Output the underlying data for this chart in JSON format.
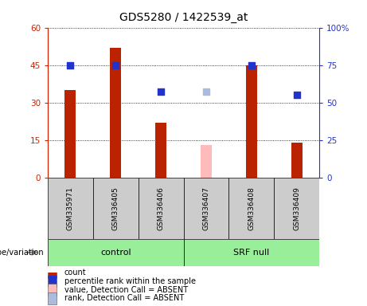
{
  "title": "GDS5280 / 1422539_at",
  "samples": [
    "GSM335971",
    "GSM336405",
    "GSM336406",
    "GSM336407",
    "GSM336408",
    "GSM336409"
  ],
  "count_values": [
    35,
    52,
    22,
    null,
    45,
    14
  ],
  "count_absent": [
    null,
    null,
    null,
    13,
    null,
    null
  ],
  "percentile_present": [
    75,
    75,
    57,
    null,
    75,
    55
  ],
  "percentile_absent": [
    null,
    null,
    null,
    57,
    null,
    null
  ],
  "left_ylim": [
    0,
    60
  ],
  "right_ylim": [
    0,
    100
  ],
  "left_yticks": [
    0,
    15,
    30,
    45,
    60
  ],
  "right_yticks": [
    0,
    25,
    50,
    75,
    100
  ],
  "right_yticklabels": [
    "0",
    "25",
    "50",
    "75",
    "100%"
  ],
  "bar_color": "#bb2200",
  "bar_absent_color": "#ffbbbb",
  "dot_color": "#2233cc",
  "dot_absent_color": "#aabbdd",
  "control_color": "#99ee99",
  "srfnull_color": "#99ee99",
  "sample_box_color": "#cccccc",
  "plot_bg": "#ffffff",
  "left_tick_color": "#cc2200",
  "right_tick_color": "#2233cc",
  "bar_width": 0.25,
  "dot_size": 35,
  "legend_items": [
    {
      "label": "count",
      "color": "#bb2200"
    },
    {
      "label": "percentile rank within the sample",
      "color": "#2233cc"
    },
    {
      "label": "value, Detection Call = ABSENT",
      "color": "#ffbbbb"
    },
    {
      "label": "rank, Detection Call = ABSENT",
      "color": "#aabbdd"
    }
  ]
}
